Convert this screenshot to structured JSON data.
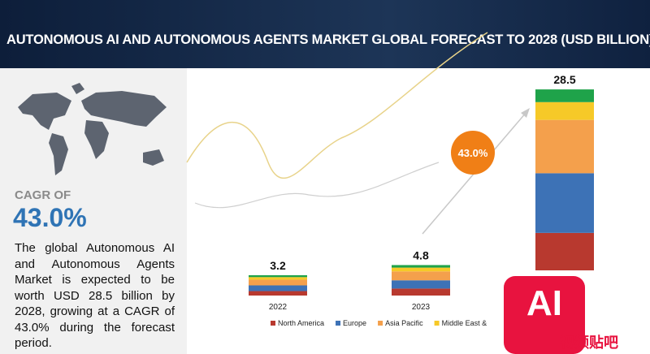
{
  "header": {
    "title": "AUTONOMOUS AI AND AUTONOMOUS AGENTS MARKET GLOBAL FORECAST TO 2028 (USD BILLION)"
  },
  "sidebar": {
    "cagr_label": "CAGR OF",
    "cagr": "43.0%",
    "description": "The global Autonomous AI and Autonomous Agents Market is expected to be worth USD 28.5 billion by 2028, growing at a CAGR of 43.0% during the forecast period."
  },
  "chart_data": {
    "type": "stacked_bar",
    "categories": [
      "2022",
      "2023",
      null
    ],
    "series": [
      {
        "name": "North America",
        "color": "#b8392f",
        "values": [
          0.7,
          1.1,
          5.9
        ]
      },
      {
        "name": "Europe",
        "color": "#3d72b6",
        "values": [
          0.9,
          1.3,
          9.4
        ]
      },
      {
        "name": "Asia Pacific",
        "color": "#f4a04c",
        "values": [
          0.9,
          1.4,
          8.4
        ]
      },
      {
        "name": "Middle East &",
        "color": "#f6c928",
        "values": [
          0.4,
          0.6,
          2.8
        ]
      },
      {
        "color": "#1fa34a",
        "values": [
          0.3,
          0.4,
          2.0
        ]
      }
    ],
    "total_labels": [
      3.2,
      4.8,
      28.5
    ],
    "annotation": "43.0%"
  },
  "watermark": {
    "logo": "AI",
    "text": "视频贴吧"
  }
}
